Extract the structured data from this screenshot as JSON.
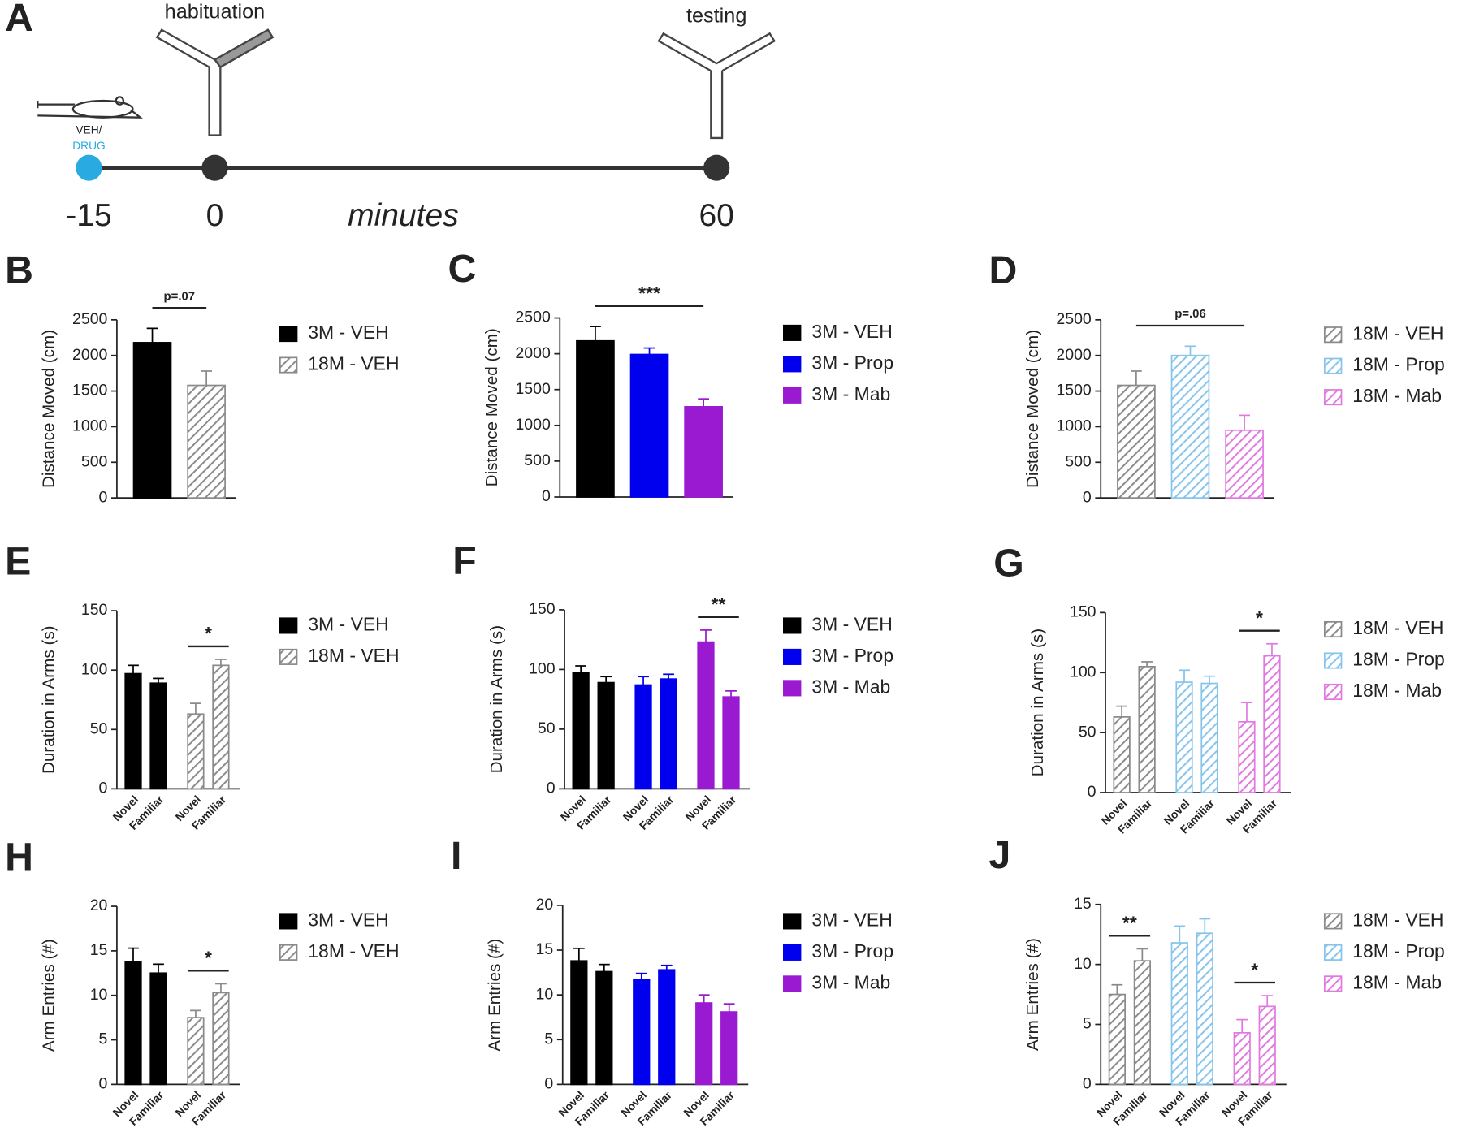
{
  "timeline": {
    "letter": "A",
    "events": [
      "habituation",
      "testing"
    ],
    "treatment": [
      "VEH/",
      "DRUG"
    ],
    "times": [
      "-15",
      "0",
      "60"
    ],
    "unit": "minutes"
  },
  "chart_data": [
    {
      "type": "bar",
      "panel": "B",
      "ylabel": "Distance Moved (cm)",
      "categories": [
        null
      ],
      "ylim": [
        0,
        2500
      ],
      "yticks": [
        0,
        500,
        1000,
        1500,
        2000,
        2500
      ],
      "series": [
        {
          "name": "3M - VEH",
          "color": "#000000",
          "hatch": false,
          "values": [
            2180
          ],
          "errors": [
            200
          ]
        },
        {
          "name": "18M - VEH",
          "color": "#8a8a8a",
          "hatch": true,
          "values": [
            1580
          ],
          "errors": [
            200
          ]
        }
      ],
      "annotations": [
        {
          "text": "p=.07",
          "series": [
            0,
            1
          ]
        }
      ]
    },
    {
      "type": "bar",
      "panel": "C",
      "ylabel": "Distance Moved (cm)",
      "categories": [
        null
      ],
      "ylim": [
        0,
        2500
      ],
      "yticks": [
        0,
        500,
        1000,
        1500,
        2000,
        2500
      ],
      "series": [
        {
          "name": "3M - VEH",
          "color": "#000000",
          "hatch": false,
          "values": [
            2180
          ],
          "errors": [
            200
          ]
        },
        {
          "name": "3M - Prop",
          "color": "#0000ee",
          "hatch": false,
          "values": [
            1990
          ],
          "errors": [
            90
          ]
        },
        {
          "name": "3M - Mab",
          "color": "#9a1ad2",
          "hatch": false,
          "values": [
            1260
          ],
          "errors": [
            110
          ]
        }
      ],
      "annotations": [
        {
          "text": "***",
          "series": [
            0,
            2
          ]
        }
      ]
    },
    {
      "type": "bar",
      "panel": "D",
      "ylabel": "Distance Moved (cm)",
      "categories": [
        null
      ],
      "ylim": [
        0,
        2500
      ],
      "yticks": [
        0,
        500,
        1000,
        1500,
        2000,
        2500
      ],
      "series": [
        {
          "name": "18M - VEH",
          "color": "#8a8a8a",
          "hatch": true,
          "values": [
            1580
          ],
          "errors": [
            200
          ]
        },
        {
          "name": "18M - Prop",
          "color": "#86c4ec",
          "hatch": true,
          "values": [
            2000
          ],
          "errors": [
            130
          ]
        },
        {
          "name": "18M - Mab",
          "color": "#e07ae0",
          "hatch": true,
          "values": [
            950
          ],
          "errors": [
            210
          ]
        }
      ],
      "annotations": [
        {
          "text": "p=.06",
          "series": [
            0,
            2
          ]
        }
      ]
    },
    {
      "type": "pairbar",
      "panel": "E",
      "ylabel": "Duration in Arms (s)",
      "categories": [
        "Novel",
        "Familiar"
      ],
      "ylim": [
        0,
        150
      ],
      "yticks": [
        0,
        50,
        100,
        150
      ],
      "series": [
        {
          "name": "3M - VEH",
          "color": "#000000",
          "hatch": false,
          "values": [
            97,
            89
          ],
          "errors": [
            7,
            4
          ]
        },
        {
          "name": "18M - VEH",
          "color": "#8a8a8a",
          "hatch": true,
          "values": [
            63,
            104
          ],
          "errors": [
            9,
            5
          ]
        }
      ],
      "annotations": [
        {
          "text": "*",
          "series": 1
        }
      ]
    },
    {
      "type": "pairbar",
      "panel": "F",
      "ylabel": "Duration in Arms (s)",
      "categories": [
        "Novel",
        "Familiar"
      ],
      "ylim": [
        0,
        150
      ],
      "yticks": [
        0,
        50,
        100,
        150
      ],
      "series": [
        {
          "name": "3M - VEH",
          "color": "#000000",
          "hatch": false,
          "values": [
            97,
            89
          ],
          "errors": [
            6,
            5
          ]
        },
        {
          "name": "3M - Prop",
          "color": "#0000ee",
          "hatch": false,
          "values": [
            87,
            92
          ],
          "errors": [
            7,
            4
          ]
        },
        {
          "name": "3M - Mab",
          "color": "#9a1ad2",
          "hatch": false,
          "values": [
            123,
            77
          ],
          "errors": [
            10,
            5
          ]
        }
      ],
      "annotations": [
        {
          "text": "**",
          "series": 2
        }
      ]
    },
    {
      "type": "pairbar",
      "panel": "G",
      "ylabel": "Duration in Arms (s)",
      "categories": [
        "Novel",
        "Familiar"
      ],
      "ylim": [
        0,
        150
      ],
      "yticks": [
        0,
        50,
        100,
        150
      ],
      "series": [
        {
          "name": "18M - VEH",
          "color": "#8a8a8a",
          "hatch": true,
          "values": [
            63,
            105
          ],
          "errors": [
            9,
            4
          ]
        },
        {
          "name": "18M - Prop",
          "color": "#86c4ec",
          "hatch": true,
          "values": [
            92,
            91
          ],
          "errors": [
            10,
            6
          ]
        },
        {
          "name": "18M - Mab",
          "color": "#e07ae0",
          "hatch": true,
          "values": [
            59,
            114
          ],
          "errors": [
            16,
            10
          ]
        }
      ],
      "annotations": [
        {
          "text": "*",
          "series": 2
        }
      ]
    },
    {
      "type": "pairbar",
      "panel": "H",
      "ylabel": "Arm Entries (#)",
      "categories": [
        "Novel",
        "Familiar"
      ],
      "ylim": [
        0,
        20
      ],
      "yticks": [
        0,
        5,
        10,
        15,
        20
      ],
      "series": [
        {
          "name": "3M - VEH",
          "color": "#000000",
          "hatch": false,
          "values": [
            13.8,
            12.5
          ],
          "errors": [
            1.5,
            1
          ]
        },
        {
          "name": "18M - VEH",
          "color": "#8a8a8a",
          "hatch": true,
          "values": [
            7.5,
            10.3
          ],
          "errors": [
            0.8,
            1
          ]
        }
      ],
      "annotations": [
        {
          "text": "*",
          "series": 1
        }
      ]
    },
    {
      "type": "pairbar",
      "panel": "I",
      "ylabel": "Arm Entries (#)",
      "categories": [
        "Novel",
        "Familiar"
      ],
      "ylim": [
        0,
        20
      ],
      "yticks": [
        0,
        5,
        10,
        15,
        20
      ],
      "series": [
        {
          "name": "3M - VEH",
          "color": "#000000",
          "hatch": false,
          "values": [
            13.8,
            12.6
          ],
          "errors": [
            1.4,
            0.8
          ]
        },
        {
          "name": "3M - Prop",
          "color": "#0000ee",
          "hatch": false,
          "values": [
            11.7,
            12.8
          ],
          "errors": [
            0.7,
            0.5
          ]
        },
        {
          "name": "3M - Mab",
          "color": "#9a1ad2",
          "hatch": false,
          "values": [
            9.1,
            8.1
          ],
          "errors": [
            0.9,
            0.9
          ]
        }
      ],
      "annotations": []
    },
    {
      "type": "pairbar",
      "panel": "J",
      "ylabel": "Arm Entries (#)",
      "categories": [
        "Novel",
        "Familiar"
      ],
      "ylim": [
        0,
        15
      ],
      "yticks": [
        0,
        5,
        10,
        15
      ],
      "series": [
        {
          "name": "18M - VEH",
          "color": "#8a8a8a",
          "hatch": true,
          "values": [
            7.5,
            10.3
          ],
          "errors": [
            0.8,
            1
          ]
        },
        {
          "name": "18M - Prop",
          "color": "#86c4ec",
          "hatch": true,
          "values": [
            11.8,
            12.6
          ],
          "errors": [
            1.4,
            1.2
          ]
        },
        {
          "name": "18M - Mab",
          "color": "#e07ae0",
          "hatch": true,
          "values": [
            4.3,
            6.5
          ],
          "errors": [
            1.1,
            0.9
          ]
        }
      ],
      "annotations": [
        {
          "text": "**",
          "series": 0
        },
        {
          "text": "*",
          "series": 2
        }
      ]
    }
  ]
}
